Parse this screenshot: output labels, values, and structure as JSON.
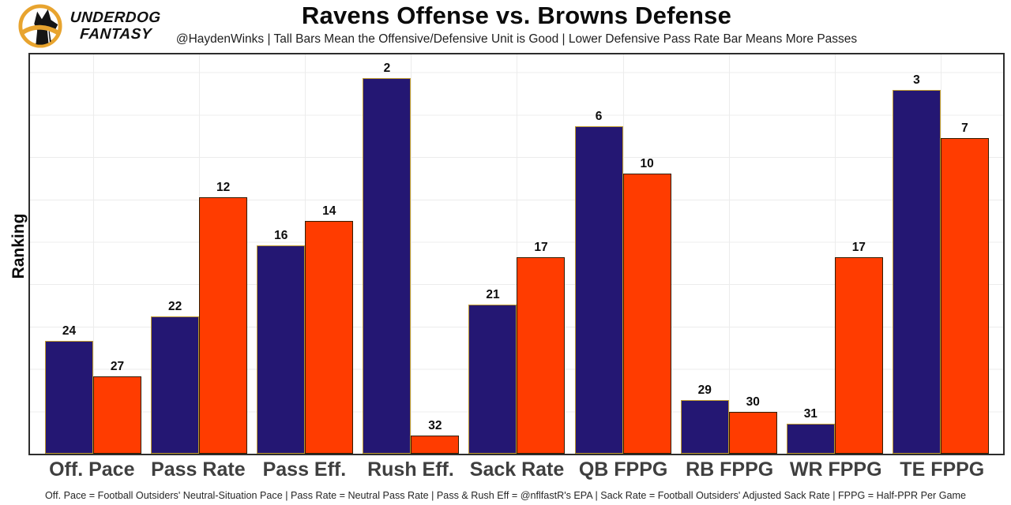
{
  "brand": {
    "logo_icon": "underdog-dog-logo",
    "name_line1": "UNDERDOG",
    "name_line2": "FANTASY",
    "ring_color": "#E8A42F",
    "silhouette_color": "#151515"
  },
  "header": {
    "title": "Ravens Offense vs. Browns Defense",
    "subtitle": "@HaydenWinks | Tall Bars Mean the Offensive/Defensive Unit is Good | Lower Defensive Pass Rate Bar Means More Passes"
  },
  "chart_data": {
    "type": "bar",
    "title": "Ravens Offense vs. Browns Defense",
    "ylabel": "Ranking",
    "xlabel": "",
    "categories": [
      "Off. Pace",
      "Pass Rate",
      "Pass Eff.",
      "Rush Eff.",
      "Sack Rate",
      "QB FPPG",
      "RB FPPG",
      "WR FPPG",
      "TE FPPG"
    ],
    "series": [
      {
        "name": "Ravens Offense",
        "fill": "#241773",
        "stroke": "#BF9B30",
        "values": [
          24,
          22,
          16,
          2,
          21,
          6,
          29,
          31,
          3
        ]
      },
      {
        "name": "Browns Defense",
        "fill": "#FF3C00",
        "stroke": "#311D00",
        "values": [
          27,
          12,
          14,
          32,
          17,
          10,
          30,
          17,
          7
        ]
      }
    ],
    "value_semantics": "NFL ranking (1 = best); taller bar = better rank",
    "bar_height_formula": "(33 - rank) / 33.5",
    "ylim": [
      0,
      33.5
    ],
    "grid": true,
    "legend_position": "none"
  },
  "footer": {
    "note": "Off. Pace = Football Outsiders' Neutral-Situation Pace | Pass Rate = Neutral Pass Rate | Pass & Rush Eff = @nflfastR's EPA | Sack Rate = Football Outsiders' Adjusted Sack Rate | FPPG = Half-PPR Per Game"
  }
}
